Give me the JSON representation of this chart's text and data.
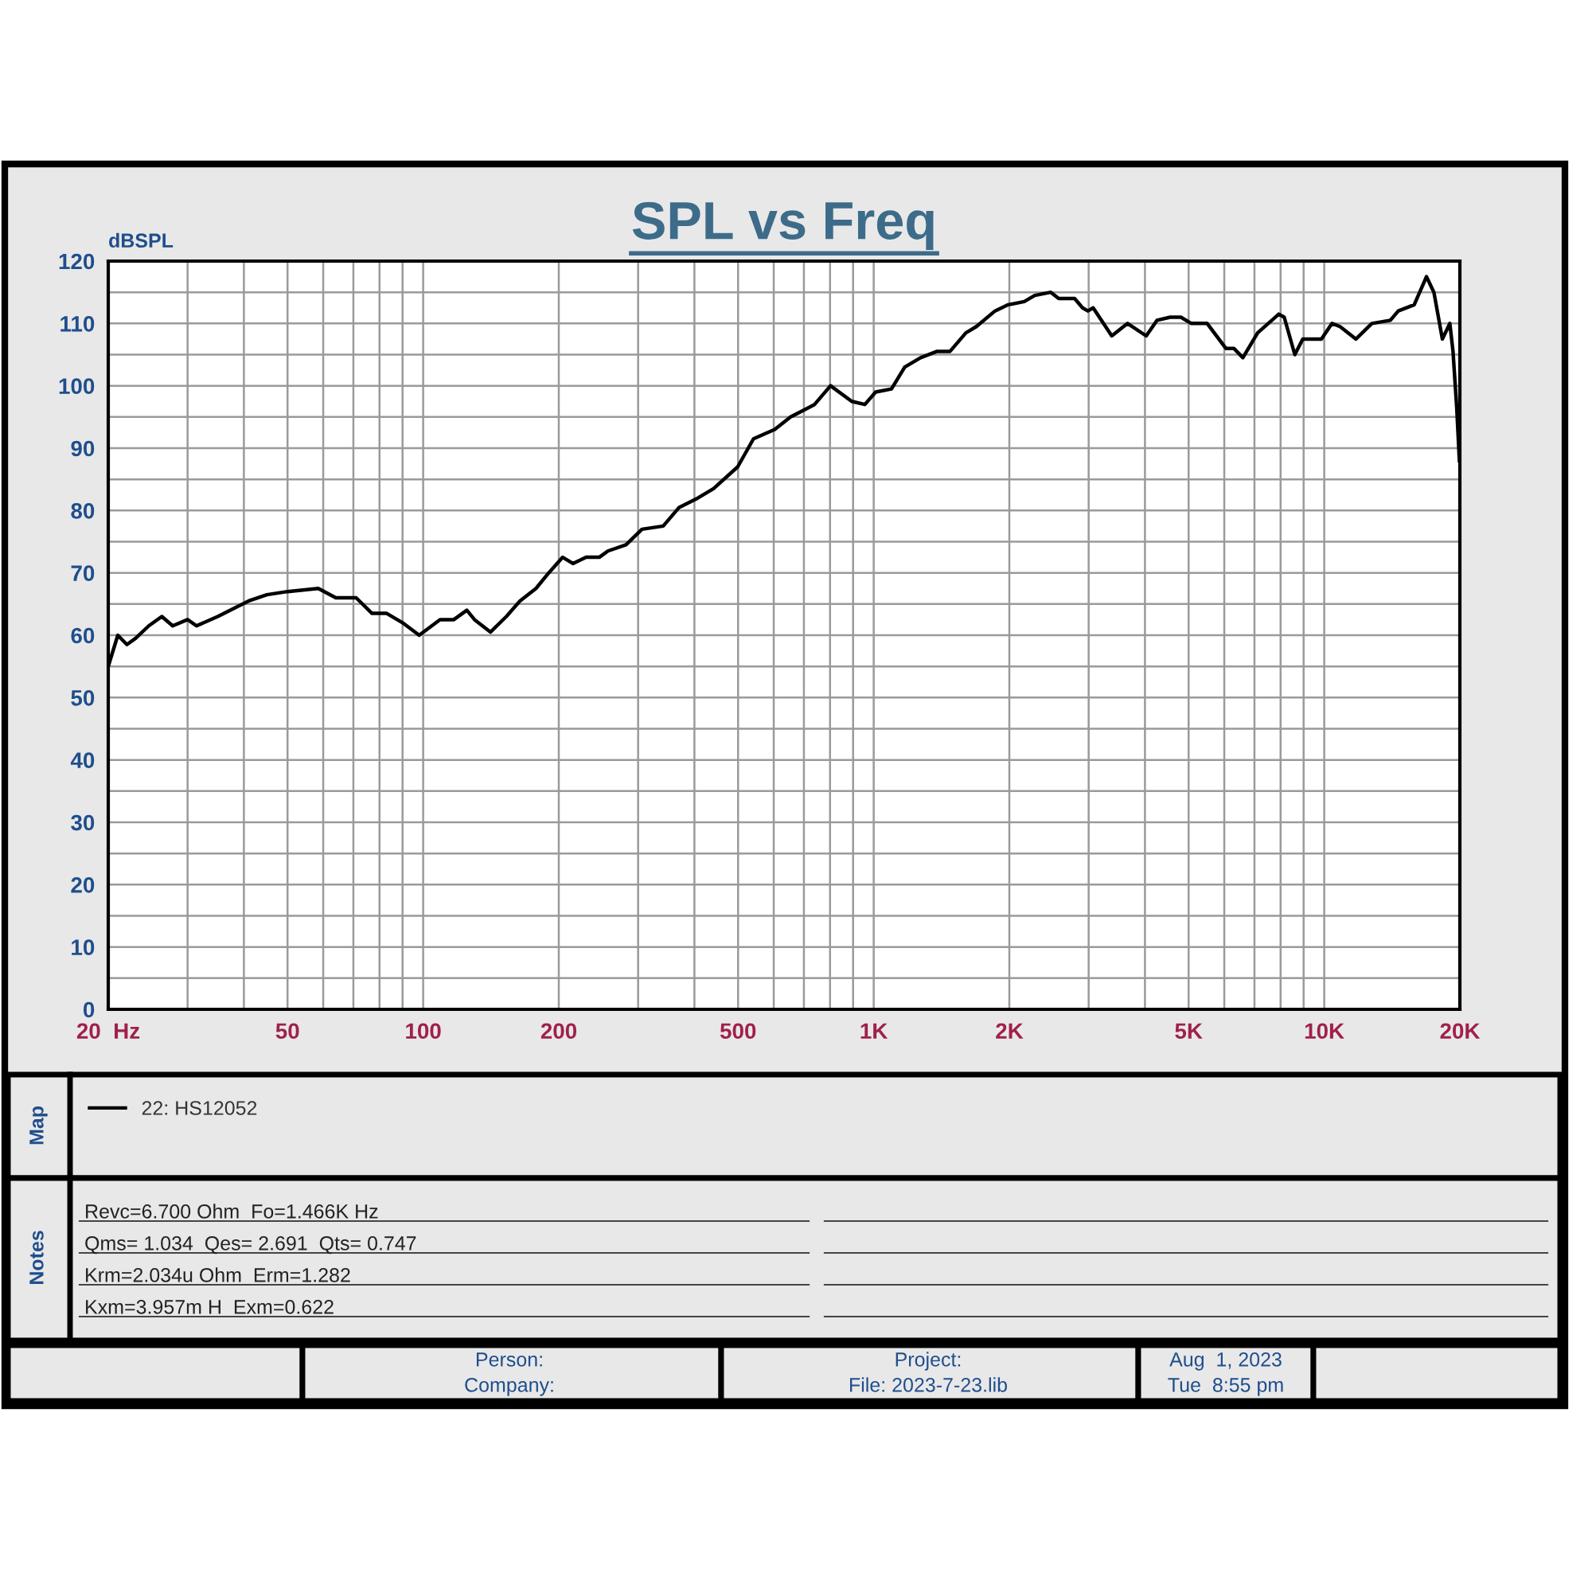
{
  "chart_data": {
    "type": "line",
    "title": "SPL vs Freq",
    "ylabel": "dBSPL",
    "log": "x",
    "grid": true,
    "legend": "bottom",
    "line_style": "solid",
    "marker": "none",
    "xlim": [
      20,
      20000
    ],
    "ylim": [
      0,
      120
    ],
    "xticks": [
      {
        "value": 20,
        "label": "20  Hz"
      },
      {
        "value": 30,
        "label": null
      },
      {
        "value": 40,
        "label": null
      },
      50,
      {
        "value": 60,
        "label": null
      },
      {
        "value": 70,
        "label": null
      },
      {
        "value": 80,
        "label": null
      },
      {
        "value": 90,
        "label": null
      },
      100,
      200,
      {
        "value": 300,
        "label": null
      },
      {
        "value": 400,
        "label": null
      },
      500,
      {
        "value": 600,
        "label": null
      },
      {
        "value": 700,
        "label": null
      },
      {
        "value": 800,
        "label": null
      },
      {
        "value": 900,
        "label": null
      },
      {
        "value": 1000,
        "label": "1K"
      },
      {
        "value": 2000,
        "label": "2K"
      },
      {
        "value": 3000,
        "label": null
      },
      {
        "value": 4000,
        "label": null
      },
      {
        "value": 5000,
        "label": "5K"
      },
      {
        "value": 6000,
        "label": null
      },
      {
        "value": 7000,
        "label": null
      },
      {
        "value": 8000,
        "label": null
      },
      {
        "value": 9000,
        "label": null
      },
      {
        "value": 10000,
        "label": "10K"
      },
      {
        "value": 20000,
        "label": "20K"
      }
    ],
    "yticks": [
      0,
      {
        "value": 5,
        "label": null
      },
      10,
      {
        "value": 15,
        "label": null
      },
      20,
      {
        "value": 25,
        "label": null
      },
      30,
      {
        "value": 35,
        "label": null
      },
      40,
      {
        "value": 45,
        "label": null
      },
      50,
      {
        "value": 55,
        "label": null
      },
      60,
      {
        "value": 65,
        "label": null
      },
      70,
      {
        "value": 75,
        "label": null
      },
      80,
      {
        "value": 85,
        "label": null
      },
      90,
      {
        "value": 95,
        "label": null
      },
      100,
      {
        "value": 105,
        "label": null
      },
      110,
      {
        "value": 115,
        "label": null
      },
      120
    ],
    "x": [
      20,
      21,
      22,
      23,
      24.6,
      26.3,
      27.8,
      30,
      31.4,
      35,
      41,
      45,
      50,
      58.5,
      64,
      71,
      77,
      83,
      90,
      98,
      109,
      117,
      125,
      130,
      141,
      153,
      164,
      178,
      190,
      204,
      215,
      230,
      246,
      257,
      282,
      306,
      341,
      370,
      407,
      441,
      499,
      541,
      603,
      654,
      739,
      802,
      894,
      956,
      1010,
      1095,
      1172,
      1271,
      1379,
      1476,
      1602,
      1690,
      1859,
      1988,
      2158,
      2278,
      2472,
      2574,
      2792,
      2908,
      2988,
      3070,
      3376,
      3660,
      4026,
      4253,
      4550,
      4806,
      5070,
      5498,
      6048,
      6300,
      6598,
      7116,
      7928,
      8150,
      8604,
      8960,
      9856,
      10406,
      10840,
      11760,
      12756,
      14020,
      14600,
      15838,
      16860,
      17516,
      18288,
      19000,
      19312,
      19680,
      19950
    ],
    "series": [
      {
        "name": "22: HS12052",
        "color": "#000000",
        "values": [
          55,
          60,
          58.5,
          59.5,
          61.5,
          63,
          61.5,
          62.5,
          61.5,
          63,
          65.5,
          66.5,
          67,
          67.5,
          66,
          66,
          63.5,
          63.5,
          62,
          60,
          62.5,
          62.5,
          64,
          62.5,
          60.5,
          63,
          65.5,
          67.5,
          70,
          72.5,
          71.5,
          72.5,
          72.5,
          73.5,
          74.5,
          77,
          77.5,
          80.5,
          82,
          83.5,
          87,
          91.5,
          93,
          95,
          97,
          100,
          97.5,
          97,
          99,
          99.5,
          103,
          104.5,
          105.5,
          105.5,
          108.5,
          109.5,
          112,
          113,
          113.5,
          114.5,
          115,
          114,
          114,
          112.5,
          112,
          112.5,
          108,
          110,
          108,
          110.5,
          111,
          111,
          110,
          110,
          106,
          106,
          104.5,
          108.5,
          111.5,
          111,
          105,
          107.5,
          107.5,
          110,
          109.5,
          107.5,
          110,
          110.5,
          112,
          113,
          117.5,
          115,
          107.5,
          110,
          105.5,
          96.5,
          88
        ]
      }
    ],
    "annotations": [
      "Map",
      "Notes",
      "Revc=6.700 Ohm  Fo=1.466K Hz",
      "Qms= 1.034  Qes= 2.691  Qts= 0.747",
      "Krm=2.034u Ohm  Erm=1.282",
      "Kxm=3.957m H  Exm=0.622",
      "Person:",
      "Company:",
      "Project:",
      "File: 2023-7-23.lib",
      "Aug  1, 2023",
      "Tue  8:55 pm"
    ]
  }
}
